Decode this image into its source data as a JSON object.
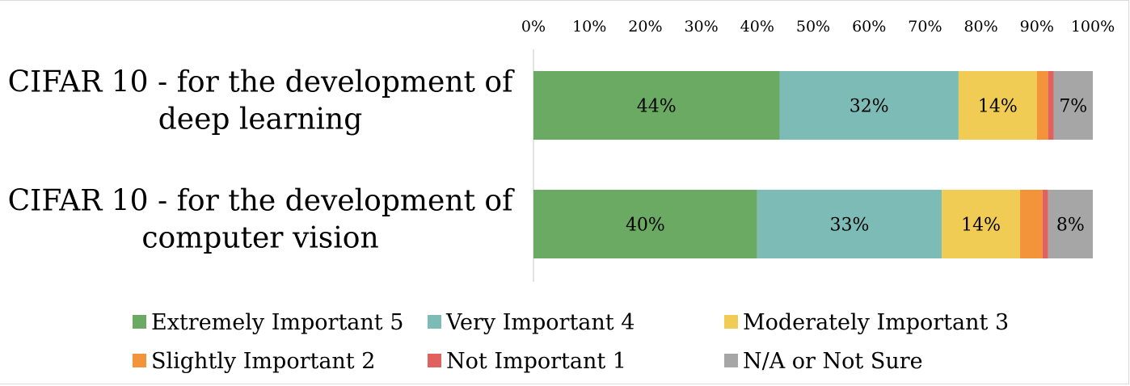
{
  "chart_data": {
    "type": "bar",
    "orientation": "horizontal",
    "stacked": "percent",
    "xlim": [
      0,
      100
    ],
    "ticks": [
      "0%",
      "10%",
      "20%",
      "30%",
      "40%",
      "50%",
      "60%",
      "70%",
      "80%",
      "90%",
      "100%"
    ],
    "categories": [
      [
        "CIFAR 10 - for the development of",
        "deep learning"
      ],
      [
        "CIFAR 10 - for the development of",
        "computer vision"
      ]
    ],
    "series": [
      {
        "name": "Extremely Important 5",
        "color": "#6aaa62",
        "values": [
          44,
          40
        ],
        "labels": [
          "44%",
          "40%"
        ]
      },
      {
        "name": "Very Important 4",
        "color": "#7dbcb6",
        "values": [
          32,
          33
        ],
        "labels": [
          "32%",
          "33%"
        ]
      },
      {
        "name": "Moderately Important 3",
        "color": "#f0cc55",
        "values": [
          14,
          14
        ],
        "labels": [
          "14%",
          "14%"
        ]
      },
      {
        "name": "Slightly Important 2",
        "color": "#f3933a",
        "values": [
          2,
          4
        ],
        "labels": [
          "",
          ""
        ]
      },
      {
        "name": "Not Important 1",
        "color": "#e0615e",
        "values": [
          1,
          1
        ],
        "labels": [
          "",
          ""
        ]
      },
      {
        "name": "N/A or Not Sure",
        "color": "#a6a6a6",
        "values": [
          7,
          8
        ],
        "labels": [
          "7%",
          "8%"
        ]
      }
    ],
    "legend_position": "bottom",
    "grid": false
  }
}
